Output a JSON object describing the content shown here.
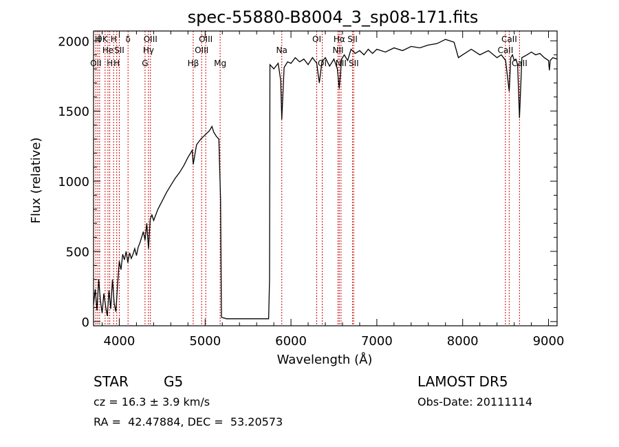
{
  "chart_data": {
    "type": "line",
    "title": "spec-55880-B8004_3_sp08-171.fits",
    "xlabel": "Wavelength (Å)",
    "ylabel": "Flux (relative)",
    "xlim": [
      3700,
      9100
    ],
    "ylim": [
      -30,
      2070
    ],
    "x_ticks": [
      4000,
      5000,
      6000,
      7000,
      8000,
      9000
    ],
    "y_ticks": [
      0,
      500,
      1000,
      1500,
      2000
    ],
    "grid": false,
    "line_color": "#000000",
    "marker_color": "#cc0000",
    "series": [
      {
        "points": [
          [
            3700,
            120
          ],
          [
            3720,
            230
          ],
          [
            3740,
            80
          ],
          [
            3760,
            300
          ],
          [
            3780,
            150
          ],
          [
            3800,
            60
          ],
          [
            3820,
            200
          ],
          [
            3840,
            110
          ],
          [
            3860,
            40
          ],
          [
            3880,
            220
          ],
          [
            3900,
            90
          ],
          [
            3920,
            300
          ],
          [
            3940,
            130
          ],
          [
            3960,
            70
          ],
          [
            3980,
            260
          ],
          [
            4000,
            430
          ],
          [
            4020,
            370
          ],
          [
            4040,
            480
          ],
          [
            4060,
            440
          ],
          [
            4080,
            500
          ],
          [
            4100,
            420
          ],
          [
            4120,
            490
          ],
          [
            4140,
            450
          ],
          [
            4160,
            480
          ],
          [
            4180,
            520
          ],
          [
            4200,
            470
          ],
          [
            4220,
            530
          ],
          [
            4240,
            560
          ],
          [
            4260,
            600
          ],
          [
            4280,
            640
          ],
          [
            4300,
            580
          ],
          [
            4320,
            700
          ],
          [
            4340,
            520
          ],
          [
            4360,
            730
          ],
          [
            4380,
            760
          ],
          [
            4400,
            720
          ],
          [
            4450,
            800
          ],
          [
            4500,
            860
          ],
          [
            4550,
            920
          ],
          [
            4600,
            970
          ],
          [
            4650,
            1020
          ],
          [
            4700,
            1060
          ],
          [
            4750,
            1110
          ],
          [
            4800,
            1170
          ],
          [
            4850,
            1220
          ],
          [
            4861,
            1120
          ],
          [
            4900,
            1260
          ],
          [
            4950,
            1300
          ],
          [
            5000,
            1330
          ],
          [
            5050,
            1360
          ],
          [
            5080,
            1390
          ],
          [
            5100,
            1350
          ],
          [
            5130,
            1320
          ],
          [
            5160,
            1300
          ],
          [
            5180,
            870
          ],
          [
            5190,
            30
          ],
          [
            5250,
            20
          ],
          [
            5500,
            20
          ],
          [
            5740,
            20
          ],
          [
            5750,
            300
          ],
          [
            5755,
            1830
          ],
          [
            5800,
            1800
          ],
          [
            5850,
            1840
          ],
          [
            5880,
            1720
          ],
          [
            5893,
            1440
          ],
          [
            5920,
            1810
          ],
          [
            5960,
            1850
          ],
          [
            6000,
            1840
          ],
          [
            6050,
            1880
          ],
          [
            6100,
            1850
          ],
          [
            6150,
            1870
          ],
          [
            6200,
            1830
          ],
          [
            6250,
            1880
          ],
          [
            6300,
            1840
          ],
          [
            6330,
            1700
          ],
          [
            6360,
            1850
          ],
          [
            6400,
            1880
          ],
          [
            6450,
            1820
          ],
          [
            6500,
            1870
          ],
          [
            6540,
            1800
          ],
          [
            6563,
            1660
          ],
          [
            6590,
            1870
          ],
          [
            6620,
            1900
          ],
          [
            6660,
            1860
          ],
          [
            6700,
            1940
          ],
          [
            6750,
            1910
          ],
          [
            6800,
            1930
          ],
          [
            6850,
            1900
          ],
          [
            6900,
            1940
          ],
          [
            6950,
            1910
          ],
          [
            7000,
            1940
          ],
          [
            7100,
            1920
          ],
          [
            7200,
            1950
          ],
          [
            7300,
            1930
          ],
          [
            7400,
            1960
          ],
          [
            7500,
            1950
          ],
          [
            7600,
            1970
          ],
          [
            7700,
            1980
          ],
          [
            7800,
            2010
          ],
          [
            7900,
            1990
          ],
          [
            7950,
            1880
          ],
          [
            8000,
            1900
          ],
          [
            8100,
            1940
          ],
          [
            8200,
            1900
          ],
          [
            8300,
            1930
          ],
          [
            8400,
            1880
          ],
          [
            8450,
            1900
          ],
          [
            8500,
            1860
          ],
          [
            8542,
            1640
          ],
          [
            8560,
            1880
          ],
          [
            8580,
            1900
          ],
          [
            8600,
            1860
          ],
          [
            8620,
            1870
          ],
          [
            8640,
            1830
          ],
          [
            8662,
            1450
          ],
          [
            8690,
            1880
          ],
          [
            8750,
            1900
          ],
          [
            8800,
            1920
          ],
          [
            8850,
            1900
          ],
          [
            8900,
            1910
          ],
          [
            8950,
            1880
          ],
          [
            9000,
            1860
          ],
          [
            9010,
            1790
          ],
          [
            9020,
            1860
          ],
          [
            9050,
            1880
          ],
          [
            9100,
            1870
          ]
        ]
      }
    ],
    "lines": [
      {
        "x": 3727,
        "row": 3,
        "label": "OII"
      },
      {
        "x": 3750,
        "row": 1,
        "label": "H"
      },
      {
        "x": 3771,
        "row": 1,
        "label": "θ"
      },
      {
        "x": 3835,
        "row": 1,
        "label": "K"
      },
      {
        "x": 3868,
        "row": 2,
        "label": "He"
      },
      {
        "x": 3889,
        "row": 3,
        "label": "H"
      },
      {
        "x": 3934,
        "row": 1,
        "label": "H"
      },
      {
        "x": 3970,
        "row": 3,
        "label": "H"
      },
      {
        "x": 4000,
        "row": 2,
        "label": "SII"
      },
      {
        "x": 4102,
        "row": 1,
        "label": "δ"
      },
      {
        "x": 4300,
        "row": 3,
        "label": "G"
      },
      {
        "x": 4340,
        "row": 2,
        "label": "Hγ"
      },
      {
        "x": 4363,
        "row": 1,
        "label": "OIII"
      },
      {
        "x": 4861,
        "row": 3,
        "label": "Hβ"
      },
      {
        "x": 4959,
        "row": 2,
        "label": "OIII"
      },
      {
        "x": 5007,
        "row": 1,
        "label": "OIII"
      },
      {
        "x": 5175,
        "row": 3,
        "label": "Mg"
      },
      {
        "x": 5893,
        "row": 2,
        "label": "Na"
      },
      {
        "x": 6300,
        "row": 1,
        "label": "OI"
      },
      {
        "x": 6364,
        "row": 3,
        "label": "OI"
      },
      {
        "x": 6548,
        "row": 2,
        "label": "NII"
      },
      {
        "x": 6563,
        "row": 1,
        "label": "Hα"
      },
      {
        "x": 6583,
        "row": 3,
        "label": "NII"
      },
      {
        "x": 6717,
        "row": 1,
        "label": "SII"
      },
      {
        "x": 6731,
        "row": 3,
        "label": "SII"
      },
      {
        "x": 8498,
        "row": 2,
        "label": "CaII"
      },
      {
        "x": 8542,
        "row": 1,
        "label": "CaII"
      },
      {
        "x": 8662,
        "row": 3,
        "label": "CaII"
      }
    ]
  },
  "info": {
    "object_type": "STAR",
    "subclass": "G5",
    "survey": "LAMOST DR5",
    "cz": "cz = 16.3 ± 3.9 km/s",
    "obs_date": "Obs-Date: 20111114",
    "coords": "RA =  42.47884, DEC =  53.20573"
  }
}
